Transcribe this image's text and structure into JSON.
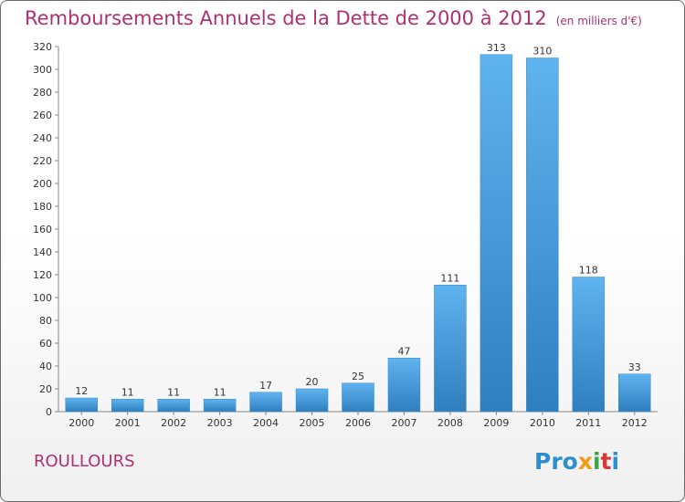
{
  "chart_data": {
    "type": "bar",
    "title": "Remboursements Annuels de la Dette de 2000 à 2012",
    "unit": "(en milliers d'€)",
    "categories": [
      "2000",
      "2001",
      "2002",
      "2003",
      "2004",
      "2005",
      "2006",
      "2007",
      "2008",
      "2009",
      "2010",
      "2011",
      "2012"
    ],
    "values": [
      12,
      11,
      11,
      11,
      17,
      20,
      25,
      47,
      111,
      313,
      310,
      118,
      33
    ],
    "ylim": [
      0,
      320
    ],
    "yticks": [
      0,
      20,
      40,
      60,
      80,
      100,
      120,
      140,
      160,
      180,
      200,
      220,
      240,
      260,
      280,
      300,
      320
    ],
    "grid": false,
    "bar_color": "#4aa3e4"
  },
  "commune": "ROULLOURS",
  "logo": {
    "letters": [
      "Pro",
      "x",
      "i",
      "t",
      "i"
    ],
    "colors": [
      "#2e8fd0",
      "#f29a1a",
      "#3aa64a",
      "#d83a3a",
      "#2e8fd0"
    ]
  }
}
